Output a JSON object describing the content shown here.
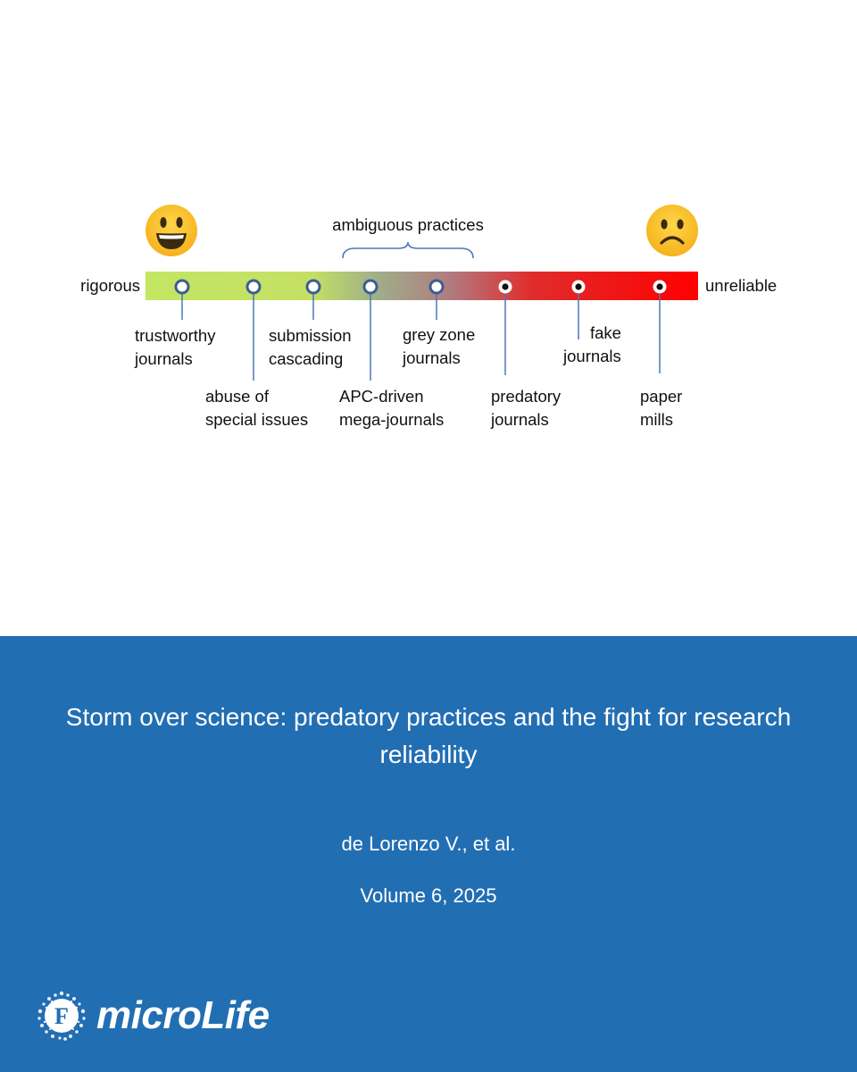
{
  "figure": {
    "left_label": "rigorous",
    "right_label": "unreliable",
    "bracket_label": "ambiguous practices",
    "left_emoji": "grinning-face",
    "right_emoji": "frowning-face",
    "gradient_colors": [
      "#c3e663",
      "#9aa888",
      "#cc5c5c",
      "#f00000",
      "#ff0000"
    ],
    "markers": [
      {
        "lines": [
          "trustworthy",
          "journals"
        ],
        "style": "hollow"
      },
      {
        "lines": [
          "abuse of",
          "special issues"
        ],
        "style": "hollow"
      },
      {
        "lines": [
          "submission",
          "cascading"
        ],
        "style": "hollow"
      },
      {
        "lines": [
          "APC-driven",
          "mega-journals"
        ],
        "style": "hollow"
      },
      {
        "lines": [
          "grey zone",
          "journals"
        ],
        "style": "hollow"
      },
      {
        "lines": [
          "predatory",
          "journals"
        ],
        "style": "filled"
      },
      {
        "lines": [
          "fake",
          "journals"
        ],
        "style": "filled"
      },
      {
        "lines": [
          "paper",
          "mills"
        ],
        "style": "filled"
      }
    ]
  },
  "footer": {
    "title": "Storm over science: predatory practices and the fight for research reliability",
    "authors": "de Lorenzo V., et al.",
    "volume": "Volume 6, 2025",
    "brand": "microLife",
    "logo_icon": "journal-logo-icon",
    "background": "#226eb3"
  }
}
